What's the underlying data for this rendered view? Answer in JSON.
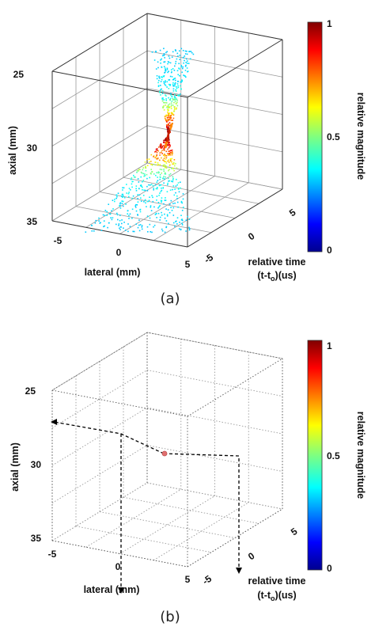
{
  "chart_data": [
    {
      "panel": "(a)",
      "type": "scatter",
      "title": "",
      "xlabel": "lateral (mm)",
      "ylabel": "axial (mm)",
      "zlabel_line1": "relative time",
      "zlabel_line2_pre": "(t-t",
      "zlabel_line2_sub": "o",
      "zlabel_line2_post": ")(us)",
      "lateral_ticks": [
        "-5",
        "0",
        "5"
      ],
      "axial_ticks": [
        "25",
        "30",
        "35"
      ],
      "time_ticks": [
        "-5",
        "0",
        "5"
      ],
      "lateral_range": [
        -5,
        5
      ],
      "axial_range": [
        25,
        35
      ],
      "time_range": [
        -5,
        5
      ],
      "grid": "solid",
      "colorbar": {
        "label": "relative magnitude",
        "ticks": [
          "0",
          "0.5",
          "1"
        ],
        "range": [
          0,
          1
        ],
        "colormap": "jet"
      },
      "caption": "(a)",
      "description_note": "dense hourglass-shaped point cloud converging to a focus near axial 30 mm"
    },
    {
      "panel": "(b)",
      "type": "scatter",
      "title": "",
      "xlabel": "lateral (mm)",
      "ylabel": "axial (mm)",
      "zlabel_line1": "relative time",
      "zlabel_line2_pre": "(t-t",
      "zlabel_line2_sub": "o",
      "zlabel_line2_post": ")(us)",
      "lateral_ticks": [
        "-5",
        "0",
        "5"
      ],
      "axial_ticks": [
        "25",
        "30",
        "35"
      ],
      "time_ticks": [
        "-5",
        "0",
        "5"
      ],
      "lateral_range": [
        -5,
        5
      ],
      "axial_range": [
        25,
        35
      ],
      "time_range": [
        -5,
        5
      ],
      "grid": "dotted",
      "points": [
        {
          "lateral": 0,
          "axial": 30,
          "time": 0,
          "magnitude": 1
        }
      ],
      "projection_lines": true,
      "colorbar": {
        "label": "relative magnitude",
        "ticks": [
          "0",
          "0.5",
          "1"
        ],
        "range": [
          0,
          1
        ],
        "colormap": "jet"
      },
      "caption": "(b)"
    }
  ],
  "colors": {
    "axis": "#333333",
    "grid": "#9a9a9a",
    "dashed": "#000000",
    "focus_point": "#e07070"
  }
}
